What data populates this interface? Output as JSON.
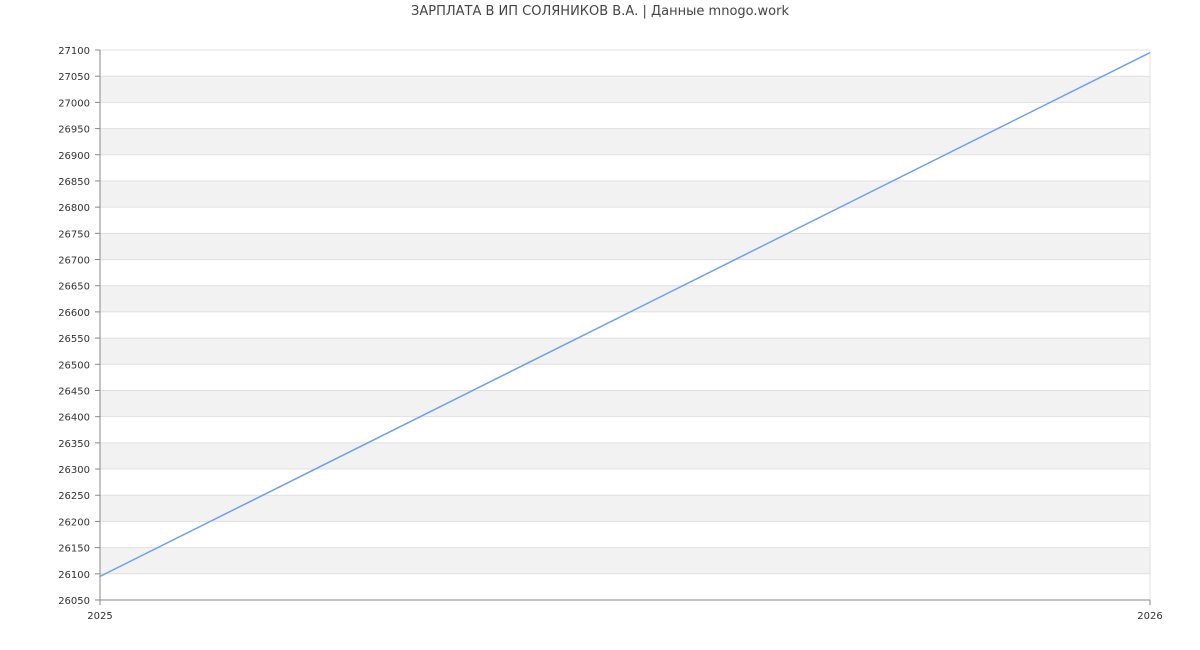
{
  "chart_data": {
    "type": "line",
    "title": "ЗАРПЛАТА В ИП СОЛЯНИКОВ В.А. | Данные mnogo.work",
    "xlabel": "",
    "ylabel": "",
    "x_ticks": [
      "2025",
      "2026"
    ],
    "ylim": [
      26050,
      27100
    ],
    "y_tick_step": 50,
    "grid": true,
    "series": [
      {
        "x": [
          2025,
          2026
        ],
        "values": [
          26095,
          27095
        ],
        "color": "#6f9ff5"
      }
    ],
    "colors": {
      "band": "#f2f2f2",
      "grid": "#e0e0e0",
      "axis": "#888888"
    }
  }
}
